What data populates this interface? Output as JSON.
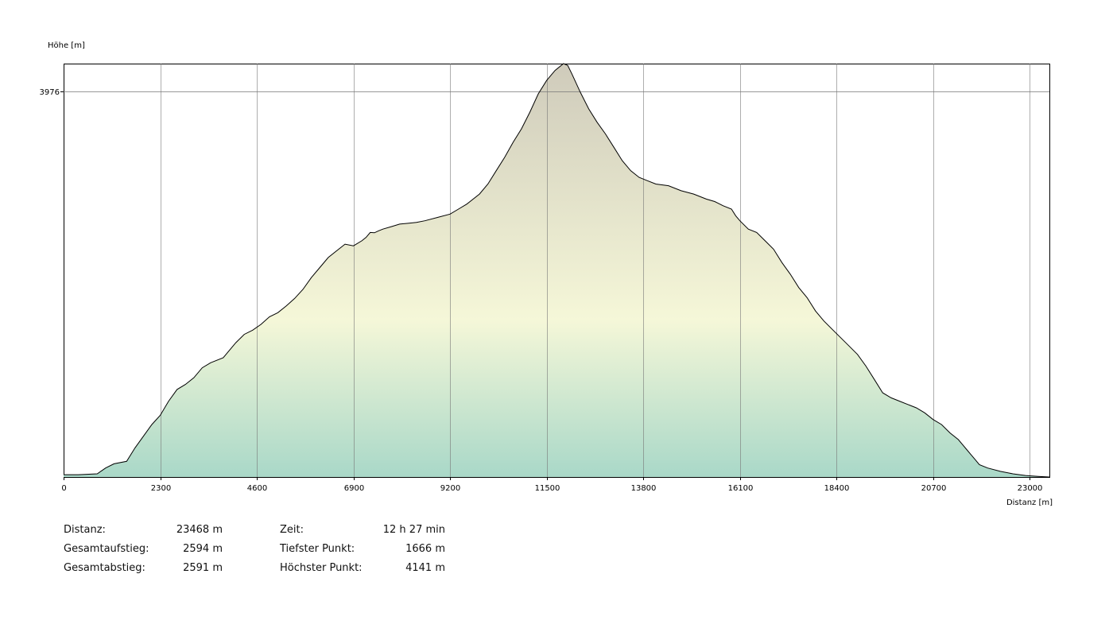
{
  "chart_data": {
    "type": "area",
    "ylabel": "Höhe [m]",
    "xlabel": "Distanz [m]",
    "xlim": [
      0,
      23468
    ],
    "ylim": [
      1666,
      4141
    ],
    "xticks": [
      0,
      2300,
      4600,
      6900,
      9200,
      11500,
      13800,
      16100,
      18400,
      20700,
      23000
    ],
    "yticks": [
      3976
    ],
    "grid": true,
    "fill_gradient": [
      "#cfcbbb",
      "#f5f7d8",
      "#a9d8c8"
    ],
    "x": [
      0,
      350,
      800,
      1000,
      1200,
      1500,
      1700,
      1900,
      2100,
      2300,
      2500,
      2700,
      2900,
      3100,
      3300,
      3500,
      3800,
      4100,
      4300,
      4500,
      4700,
      4900,
      5100,
      5300,
      5500,
      5700,
      5900,
      6100,
      6300,
      6500,
      6700,
      6900,
      7100,
      7200,
      7300,
      7400,
      7500,
      7600,
      7800,
      8000,
      8200,
      8400,
      8600,
      8900,
      9200,
      9400,
      9600,
      9900,
      10100,
      10300,
      10500,
      10700,
      10900,
      11100,
      11300,
      11500,
      11700,
      11900,
      12000,
      12100,
      12300,
      12500,
      12700,
      12900,
      13100,
      13300,
      13500,
      13700,
      13900,
      14100,
      14400,
      14700,
      15000,
      15300,
      15500,
      15700,
      15900,
      16000,
      16100,
      16300,
      16500,
      16700,
      16900,
      17100,
      17300,
      17500,
      17700,
      17900,
      18100,
      18300,
      18500,
      18700,
      18900,
      19100,
      19300,
      19500,
      19700,
      19900,
      20100,
      20300,
      20500,
      20700,
      20900,
      21100,
      21300,
      21400,
      21500,
      21600,
      21700,
      21800,
      22000,
      22300,
      22600,
      22900,
      23200,
      23468
    ],
    "y": [
      1680,
      1680,
      1685,
      1720,
      1745,
      1760,
      1840,
      1910,
      1980,
      2035,
      2120,
      2190,
      2220,
      2260,
      2320,
      2350,
      2380,
      2470,
      2520,
      2545,
      2580,
      2625,
      2650,
      2690,
      2735,
      2790,
      2860,
      2920,
      2980,
      3020,
      3060,
      3050,
      3080,
      3100,
      3130,
      3128,
      3140,
      3150,
      3165,
      3180,
      3185,
      3190,
      3200,
      3220,
      3240,
      3270,
      3300,
      3360,
      3420,
      3500,
      3580,
      3670,
      3750,
      3850,
      3960,
      4040,
      4100,
      4141,
      4130,
      4080,
      3970,
      3870,
      3790,
      3720,
      3640,
      3560,
      3500,
      3460,
      3440,
      3420,
      3410,
      3380,
      3360,
      3330,
      3315,
      3290,
      3270,
      3230,
      3200,
      3150,
      3130,
      3080,
      3030,
      2950,
      2880,
      2800,
      2740,
      2660,
      2600,
      2550,
      2500,
      2450,
      2400,
      2330,
      2250,
      2170,
      2140,
      2120,
      2100,
      2080,
      2050,
      2010,
      1980,
      1930,
      1890,
      1860,
      1830,
      1800,
      1770,
      1740,
      1720,
      1700,
      1685,
      1675,
      1670,
      1666
    ]
  },
  "stats": {
    "col1": [
      {
        "label": "Distanz:",
        "value": "23468 m"
      },
      {
        "label": "Gesamtaufstieg:",
        "value": "2594 m"
      },
      {
        "label": "Gesamtabstieg:",
        "value": "2591 m"
      }
    ],
    "col2": [
      {
        "label": "Zeit:",
        "value": "12 h 27 min"
      },
      {
        "label": "Tiefster Punkt:",
        "value": "1666 m"
      },
      {
        "label": "Höchster Punkt:",
        "value": "4141 m"
      }
    ]
  }
}
